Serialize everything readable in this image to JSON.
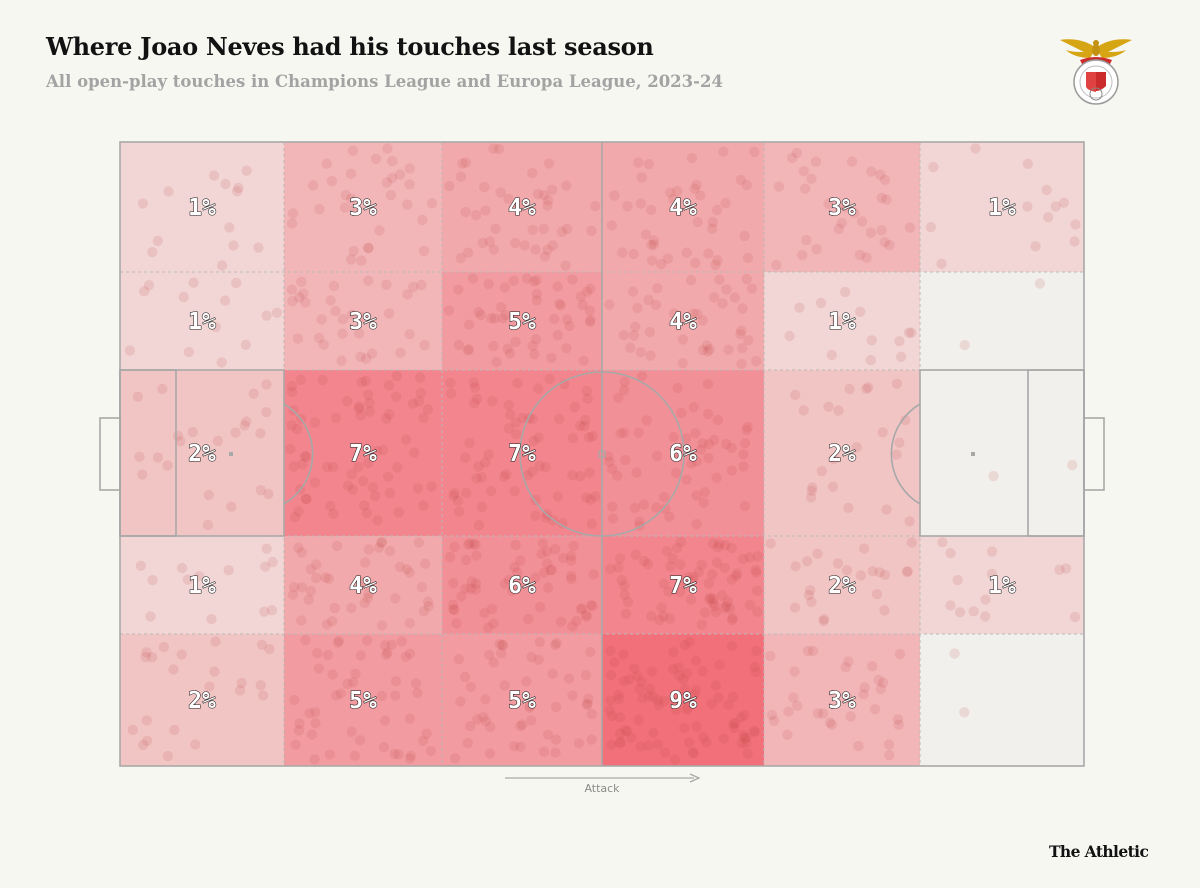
{
  "header": {
    "title": "Where Joao Neves had his touches last season",
    "subtitle": "All open-play touches in Champions League and Europa League, 2023-24"
  },
  "branding": {
    "publisher": "The Athletic",
    "club_crest_icon": "benfica-crest-icon"
  },
  "colors": {
    "background": "#f7f7f2",
    "heat_base": "#f2f0ec",
    "heat_high": "#f2707a",
    "pitch_lines": "#a8a8a8",
    "dots": "#c04848"
  },
  "chart_data": {
    "type": "heatmap",
    "title": "Where Joao Neves had his touches last season",
    "subtitle": "All open-play touches in Champions League and Europa League, 2023-24",
    "direction_label": "Attack",
    "unit": "% of touches",
    "columns": 6,
    "rows": 5,
    "zones": [
      [
        1,
        3,
        4,
        4,
        3,
        1
      ],
      [
        1,
        3,
        5,
        4,
        1,
        0
      ],
      [
        2,
        7,
        7,
        6,
        2,
        0
      ],
      [
        1,
        4,
        6,
        7,
        2,
        1
      ],
      [
        2,
        5,
        5,
        9,
        3,
        0
      ]
    ],
    "labels": [
      [
        "1%",
        "3%",
        "4%",
        "4%",
        "3%",
        "1%"
      ],
      [
        "1%",
        "3%",
        "5%",
        "4%",
        "1%",
        ""
      ],
      [
        "2%",
        "7%",
        "7%",
        "6%",
        "2%",
        ""
      ],
      [
        "1%",
        "4%",
        "6%",
        "7%",
        "2%",
        "1%"
      ],
      [
        "2%",
        "5%",
        "5%",
        "9%",
        "3%",
        ""
      ]
    ]
  }
}
